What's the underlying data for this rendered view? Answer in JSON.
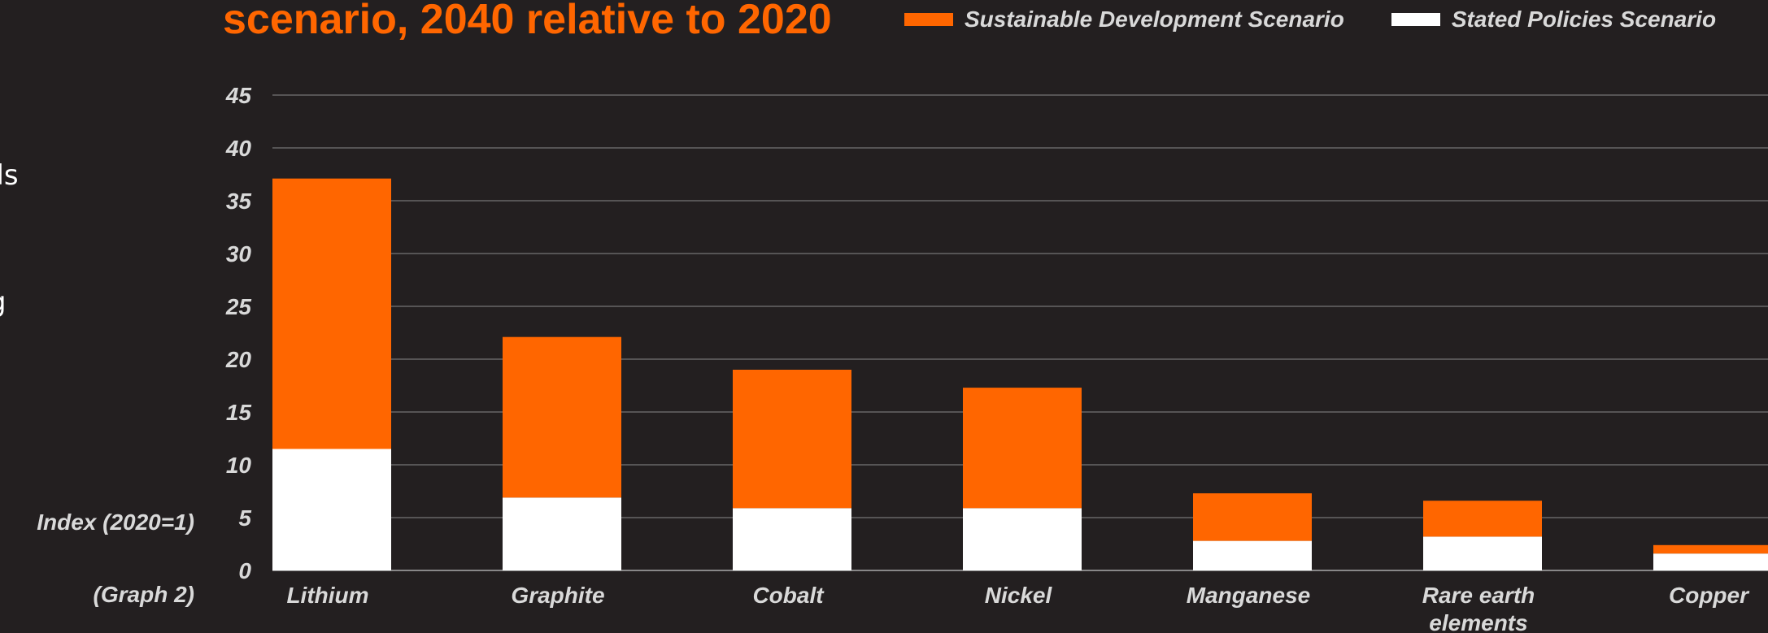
{
  "left_text": [
    "lls",
    "g"
  ],
  "labels": {
    "index": "Index (2020=1)",
    "graph": "(Graph 2)"
  },
  "chart_data": {
    "type": "bar",
    "stacked": true,
    "title": "scenario, 2040 relative to 2020",
    "ylabel": "Index (2020=1)",
    "ylim": [
      0,
      45
    ],
    "yticks": [
      0,
      5,
      10,
      15,
      20,
      25,
      30,
      35,
      40,
      45
    ],
    "grid": true,
    "legend_position": "top",
    "categories": [
      "Lithium",
      "Graphite",
      "Cobalt",
      "Nickel",
      "Manganese",
      "Rare earth elements",
      "Copper"
    ],
    "series": [
      {
        "name": "Stated Policies Scenario",
        "color": "#ffffff",
        "values": [
          11.5,
          6.9,
          5.9,
          5.9,
          2.8,
          3.2,
          1.6
        ]
      },
      {
        "name": "Sustainable Development Scenario",
        "color": "#ff6600",
        "values": [
          25.6,
          15.2,
          13.1,
          11.4,
          4.5,
          3.4,
          0.8
        ]
      }
    ],
    "totals_note_hidden": false
  }
}
